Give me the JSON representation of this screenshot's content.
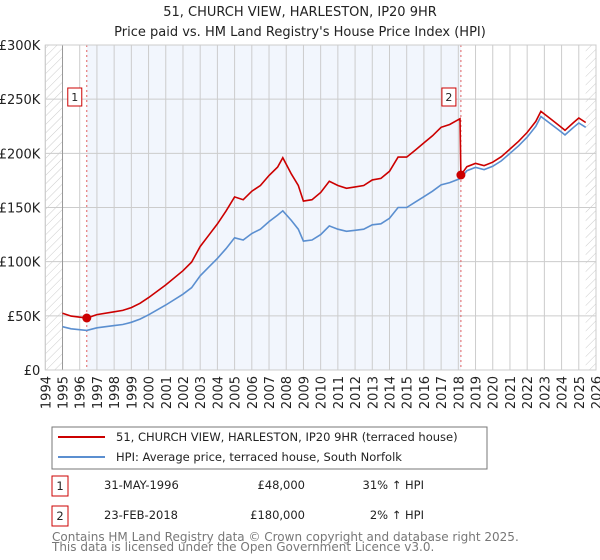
{
  "chart_data": {
    "type": "line",
    "title": "51, CHURCH VIEW, HARLESTON, IP20 9HR",
    "subtitle": "Price paid vs. HM Land Registry's House Price Index (HPI)",
    "xlabel": "",
    "ylabel": "",
    "xlim": [
      1994,
      2026
    ],
    "ylim": [
      0,
      300000
    ],
    "x_ticks": [
      "1994",
      "1995",
      "1996",
      "1997",
      "1998",
      "1999",
      "2000",
      "2001",
      "2002",
      "2003",
      "2004",
      "2005",
      "2006",
      "2007",
      "2008",
      "2009",
      "2010",
      "2011",
      "2012",
      "2013",
      "2014",
      "2015",
      "2016",
      "2017",
      "2018",
      "2019",
      "2020",
      "2021",
      "2022",
      "2023",
      "2024",
      "2025",
      "2026"
    ],
    "y_ticks": [
      {
        "v": 0,
        "label": "£0"
      },
      {
        "v": 50000,
        "label": "£50K"
      },
      {
        "v": 100000,
        "label": "£100K"
      },
      {
        "v": 150000,
        "label": "£150K"
      },
      {
        "v": 200000,
        "label": "£200K"
      },
      {
        "v": 250000,
        "label": "£250K"
      },
      {
        "v": 300000,
        "label": "£300K"
      }
    ],
    "grid": true,
    "legend_placement": "below",
    "series": [
      {
        "name": "51, CHURCH VIEW, HARLESTON, IP20 9HR (terraced house)",
        "color": "#cc0000",
        "x": [
          1995,
          1995.5,
          1996.41,
          1997,
          1998,
          1998.5,
          1999,
          1999.5,
          2000,
          2001,
          2002,
          2002.5,
          2003,
          2003.5,
          2004,
          2004.5,
          2005,
          2005.5,
          2006,
          2006.5,
          2007,
          2007.5,
          2007.8,
          2008.3,
          2008.7,
          2009,
          2009.5,
          2010,
          2010.5,
          2011,
          2011.5,
          2012,
          2012.5,
          2013,
          2013.5,
          2014,
          2014.5,
          2015,
          2015.5,
          2016,
          2016.5,
          2017,
          2017.5,
          2018.1,
          2018.15,
          2018.5,
          2019,
          2019.5,
          2020,
          2020.5,
          2021,
          2021.5,
          2022,
          2022.5,
          2022.8,
          2023.3,
          2023.8,
          2024.2,
          2024.7,
          2025,
          2025.4
        ],
        "y": [
          52400,
          49800,
          48000,
          51100,
          53700,
          55000,
          57600,
          61600,
          66800,
          78600,
          91700,
          99600,
          114000,
          124400,
          134900,
          146700,
          159800,
          157200,
          165000,
          170300,
          179500,
          187300,
          196000,
          180800,
          170300,
          155900,
          157200,
          163800,
          174200,
          170300,
          167700,
          169000,
          170300,
          175500,
          176900,
          183400,
          196500,
          196500,
          203000,
          209600,
          216200,
          224000,
          226600,
          232000,
          180000,
          187700,
          190700,
          188700,
          191800,
          196900,
          204000,
          211100,
          219300,
          229500,
          238700,
          232600,
          226400,
          221300,
          228500,
          232600,
          228500
        ]
      },
      {
        "name": "HPI: Average price, terraced house, South Norfolk",
        "color": "#5b8fd0",
        "x": [
          1995,
          1995.5,
          1996.41,
          1997,
          1998,
          1998.5,
          1999,
          1999.5,
          2000,
          2001,
          2002,
          2002.5,
          2003,
          2003.5,
          2004,
          2004.5,
          2005,
          2005.5,
          2006,
          2006.5,
          2007,
          2007.5,
          2007.8,
          2008.3,
          2008.7,
          2009,
          2009.5,
          2010,
          2010.5,
          2011,
          2011.5,
          2012,
          2012.5,
          2013,
          2013.5,
          2014,
          2014.5,
          2015,
          2015.5,
          2016,
          2016.5,
          2017,
          2017.5,
          2018.15,
          2018.5,
          2019,
          2019.5,
          2020,
          2020.5,
          2021,
          2021.5,
          2022,
          2022.5,
          2022.8,
          2023.3,
          2023.8,
          2024.2,
          2024.7,
          2025,
          2025.4
        ],
        "y": [
          40000,
          38000,
          36600,
          39000,
          41000,
          42000,
          44000,
          47000,
          51000,
          60000,
          70000,
          76000,
          87000,
          95000,
          103000,
          112000,
          122000,
          120000,
          126000,
          130000,
          137000,
          143000,
          147000,
          138000,
          130000,
          119000,
          120000,
          125000,
          133000,
          130000,
          128000,
          129000,
          130000,
          134000,
          135000,
          140000,
          150000,
          150000,
          155000,
          160000,
          165000,
          171000,
          173000,
          177000,
          184000,
          187000,
          185000,
          188000,
          193000,
          200000,
          207000,
          215000,
          225000,
          234000,
          228000,
          222000,
          217000,
          224000,
          228000,
          224000
        ]
      }
    ],
    "annotations": [
      {
        "label": "1",
        "x": 1996.41,
        "y": 48000
      },
      {
        "label": "2",
        "x": 2018.15,
        "y": 180000
      }
    ]
  },
  "legend": [
    "51, CHURCH VIEW, HARLESTON, IP20 9HR (terraced house)",
    "HPI: Average price, terraced house, South Norfolk"
  ],
  "sales": [
    {
      "num": "1",
      "date": "31-MAY-1996",
      "price": "£48,000",
      "hpi": "31% ↑ HPI"
    },
    {
      "num": "2",
      "date": "23-FEB-2018",
      "price": "£180,000",
      "hpi": "2% ↑ HPI"
    }
  ],
  "footer": [
    "Contains HM Land Registry data © Crown copyright and database right 2025.",
    "This data is licensed under the Open Government Licence v3.0."
  ]
}
